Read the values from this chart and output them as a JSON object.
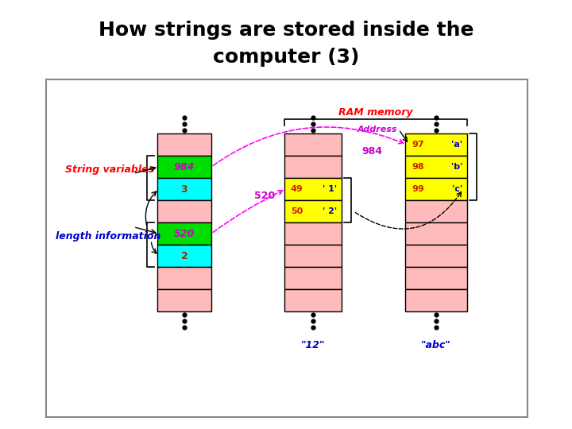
{
  "title_line1": "How strings are stored inside the",
  "title_line2": "computer (3)",
  "title_fontsize": 18,
  "title_color": "#000000",
  "bg_color": "#ffffff",
  "cell_pink": "#ffbbbb",
  "cell_green": "#00dd00",
  "cell_cyan": "#00ffff",
  "cell_yellow": "#ffff00",
  "text_purple": "#cc00cc",
  "text_red": "#cc2200",
  "text_blue": "#0000cc",
  "text_dark_red": "#993300",
  "ram_label": "RAM memory",
  "address_label": "Address",
  "string_var_label": "String variables",
  "length_info_label": "length information",
  "label_12": "\"12\"",
  "label_abc": "\"abc\""
}
